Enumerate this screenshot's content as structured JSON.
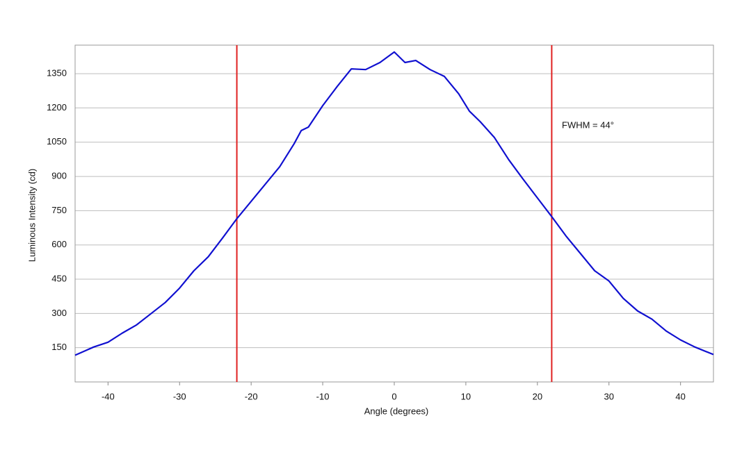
{
  "chart_data": {
    "type": "line",
    "xlabel": "Angle (degrees)",
    "ylabel": "Luminous Intensity (cd)",
    "xlim": [
      -44.6,
      44.6
    ],
    "ylim": [
      0,
      1475
    ],
    "xticks": [
      -40,
      -30,
      -20,
      -10,
      0,
      10,
      20,
      30,
      40
    ],
    "yticks": [
      150,
      300,
      450,
      600,
      750,
      900,
      1050,
      1200,
      1350
    ],
    "grid": true,
    "grid_color": "#bdbdbd",
    "x": [
      -44.6,
      -42,
      -40,
      -38,
      -36,
      -34,
      -32,
      -30,
      -28,
      -26,
      -24,
      -22,
      -20,
      -18,
      -16,
      -14,
      -13,
      -12,
      -10,
      -8,
      -6,
      -4,
      -2,
      0,
      1.5,
      3,
      5,
      7,
      9,
      10.5,
      12,
      14,
      16,
      18,
      20,
      22,
      24,
      26,
      28,
      30,
      32,
      34,
      36,
      38,
      40,
      42,
      44.6
    ],
    "series": [
      {
        "color": "#1010d0",
        "values": [
          117,
          153,
          174,
          214,
          250,
          299,
          348,
          411,
          487,
          548,
          630,
          715,
          791,
          867,
          943,
          1043,
          1101,
          1116,
          1210,
          1293,
          1371,
          1368,
          1399,
          1445,
          1399,
          1408,
          1368,
          1338,
          1262,
          1186,
          1140,
          1070,
          973,
          888,
          806,
          724,
          639,
          563,
          487,
          442,
          366,
          311,
          275,
          223,
          184,
          153,
          120
        ]
      }
    ],
    "vlines": [
      -22,
      22
    ],
    "vline_color": "#e02020",
    "annotation": "FWHM = 44°"
  }
}
